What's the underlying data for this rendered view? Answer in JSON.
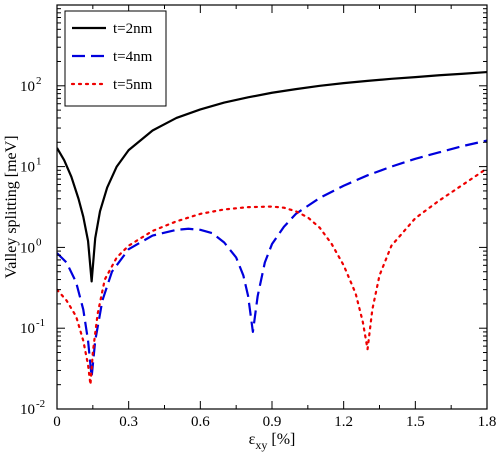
{
  "chart_data": {
    "type": "line",
    "xlabel": "ε",
    "xlabel_sub": "xy",
    "xlabel_unit": "[%]",
    "ylabel": "Valley splitting [meV]",
    "xlim": [
      0,
      1.8
    ],
    "ylim": [
      0.01,
      1000
    ],
    "yscale": "log",
    "x_ticks": [
      0,
      0.3,
      0.6,
      0.9,
      1.2,
      1.5,
      1.8
    ],
    "x_tick_labels": [
      "0",
      "0.3",
      "0.6",
      "0.9",
      "1.2",
      "1.5",
      "1.8"
    ],
    "y_ticks": [
      {
        "base": "10",
        "exp": "-2",
        "value": 0.01
      },
      {
        "base": "10",
        "exp": "-1",
        "value": 0.1
      },
      {
        "base": "10",
        "exp": "0",
        "value": 1
      },
      {
        "base": "10",
        "exp": "1",
        "value": 10
      },
      {
        "base": "10",
        "exp": "2",
        "value": 100
      }
    ],
    "grid": false,
    "legend_position": "top-left",
    "series": [
      {
        "name": "t=2nm",
        "color": "#000000",
        "style": "solid",
        "points": [
          [
            0,
            17
          ],
          [
            0.03,
            12
          ],
          [
            0.06,
            7.5
          ],
          [
            0.09,
            4
          ],
          [
            0.11,
            2.4
          ],
          [
            0.13,
            1.2
          ],
          [
            0.145,
            0.38
          ],
          [
            0.16,
            1.3
          ],
          [
            0.18,
            2.8
          ],
          [
            0.21,
            5.5
          ],
          [
            0.25,
            10
          ],
          [
            0.3,
            16
          ],
          [
            0.4,
            28
          ],
          [
            0.5,
            40
          ],
          [
            0.6,
            51
          ],
          [
            0.7,
            62
          ],
          [
            0.8,
            72
          ],
          [
            0.9,
            82
          ],
          [
            1.0,
            91
          ],
          [
            1.1,
            100
          ],
          [
            1.2,
            108
          ],
          [
            1.3,
            115
          ],
          [
            1.4,
            122
          ],
          [
            1.5,
            128
          ],
          [
            1.6,
            135
          ],
          [
            1.7,
            141
          ],
          [
            1.8,
            148
          ]
        ]
      },
      {
        "name": "t=4nm",
        "color": "#0000dd",
        "style": "dashed",
        "points": [
          [
            0,
            0.85
          ],
          [
            0.04,
            0.65
          ],
          [
            0.08,
            0.37
          ],
          [
            0.11,
            0.17
          ],
          [
            0.13,
            0.07
          ],
          [
            0.145,
            0.025
          ],
          [
            0.16,
            0.07
          ],
          [
            0.19,
            0.22
          ],
          [
            0.23,
            0.5
          ],
          [
            0.3,
            0.95
          ],
          [
            0.4,
            1.4
          ],
          [
            0.5,
            1.65
          ],
          [
            0.55,
            1.7
          ],
          [
            0.6,
            1.65
          ],
          [
            0.65,
            1.5
          ],
          [
            0.7,
            1.15
          ],
          [
            0.75,
            0.75
          ],
          [
            0.78,
            0.45
          ],
          [
            0.8,
            0.25
          ],
          [
            0.82,
            0.09
          ],
          [
            0.84,
            0.25
          ],
          [
            0.87,
            0.65
          ],
          [
            0.9,
            1.1
          ],
          [
            0.95,
            1.8
          ],
          [
            1.0,
            2.6
          ],
          [
            1.1,
            4.1
          ],
          [
            1.2,
            5.8
          ],
          [
            1.3,
            7.8
          ],
          [
            1.4,
            10
          ],
          [
            1.5,
            12.5
          ],
          [
            1.6,
            15
          ],
          [
            1.7,
            18
          ],
          [
            1.8,
            21
          ]
        ]
      },
      {
        "name": "t=5nm",
        "color": "#ee0000",
        "style": "dotted",
        "points": [
          [
            0,
            0.3
          ],
          [
            0.04,
            0.22
          ],
          [
            0.08,
            0.14
          ],
          [
            0.11,
            0.07
          ],
          [
            0.13,
            0.035
          ],
          [
            0.14,
            0.02
          ],
          [
            0.15,
            0.05
          ],
          [
            0.17,
            0.15
          ],
          [
            0.2,
            0.4
          ],
          [
            0.25,
            0.75
          ],
          [
            0.3,
            1.05
          ],
          [
            0.4,
            1.6
          ],
          [
            0.5,
            2.1
          ],
          [
            0.6,
            2.6
          ],
          [
            0.7,
            2.95
          ],
          [
            0.8,
            3.15
          ],
          [
            0.9,
            3.2
          ],
          [
            0.95,
            3.1
          ],
          [
            1.0,
            2.8
          ],
          [
            1.05,
            2.35
          ],
          [
            1.1,
            1.75
          ],
          [
            1.15,
            1.1
          ],
          [
            1.2,
            0.6
          ],
          [
            1.25,
            0.27
          ],
          [
            1.28,
            0.12
          ],
          [
            1.3,
            0.055
          ],
          [
            1.32,
            0.17
          ],
          [
            1.35,
            0.45
          ],
          [
            1.4,
            1.05
          ],
          [
            1.5,
            2.3
          ],
          [
            1.6,
            3.8
          ],
          [
            1.7,
            6
          ],
          [
            1.8,
            9.5
          ]
        ]
      }
    ]
  }
}
